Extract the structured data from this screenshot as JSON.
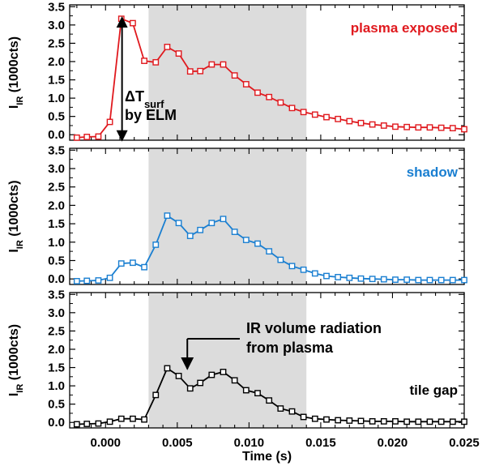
{
  "chart_data": [
    {
      "type": "line",
      "panel": "plasma exposed",
      "label": "plasma exposed",
      "color": "#e0191e",
      "ylabel_main": "I",
      "ylabel_sub": "IR",
      "ylabel_rest": " (1000cts)",
      "xlim": [
        -0.0025,
        0.025
      ],
      "ylim": [
        -0.15,
        3.55
      ],
      "yticks": [
        "0.0",
        "0.5",
        "1.0",
        "1.5",
        "2.0",
        "2.5",
        "3.0",
        "3.5"
      ],
      "shaded_x_range": [
        0.003,
        0.014
      ],
      "x": [
        -0.002,
        -0.0013,
        -0.0005,
        0.0003,
        0.0011,
        0.0019,
        0.0027,
        0.0035,
        0.0043,
        0.0051,
        0.0059,
        0.0066,
        0.0074,
        0.0082,
        0.009,
        0.0098,
        0.0106,
        0.0114,
        0.0122,
        0.013,
        0.0138,
        0.0146,
        0.0154,
        0.0162,
        0.017,
        0.0178,
        0.0186,
        0.0194,
        0.0202,
        0.021,
        0.0218,
        0.0226,
        0.0234,
        0.0242,
        0.025
      ],
      "y": [
        -0.08,
        -0.06,
        -0.05,
        0.35,
        3.17,
        3.05,
        2.02,
        1.98,
        2.4,
        2.22,
        1.73,
        1.74,
        1.92,
        1.92,
        1.62,
        1.38,
        1.15,
        1.03,
        0.88,
        0.73,
        0.62,
        0.55,
        0.48,
        0.43,
        0.37,
        0.32,
        0.28,
        0.25,
        0.22,
        0.21,
        0.2,
        0.2,
        0.19,
        0.18,
        0.15
      ],
      "annotation": {
        "line1": "ΔT",
        "line1_sub": "surf",
        "line2": "by ELM",
        "arrow_x": 0.00115,
        "arrow_y_from": -0.1,
        "arrow_y_to": 3.15
      }
    },
    {
      "type": "line",
      "panel": "shadow",
      "label": "shadow",
      "color": "#1a7fd1",
      "ylabel_main": "I",
      "ylabel_sub": "IR",
      "ylabel_rest": " (1000cts)",
      "xlim": [
        -0.0025,
        0.025
      ],
      "ylim": [
        -0.15,
        3.55
      ],
      "yticks": [
        "0.0",
        "0.5",
        "1.0",
        "1.5",
        "2.0",
        "2.5",
        "3.0",
        "3.5"
      ],
      "shaded_x_range": [
        0.003,
        0.014
      ],
      "x": [
        -0.002,
        -0.0013,
        -0.0005,
        0.0003,
        0.0011,
        0.0019,
        0.0027,
        0.0035,
        0.0043,
        0.0051,
        0.0059,
        0.0066,
        0.0074,
        0.0082,
        0.009,
        0.0098,
        0.0106,
        0.0114,
        0.0122,
        0.013,
        0.0138,
        0.0146,
        0.0154,
        0.0162,
        0.017,
        0.0178,
        0.0186,
        0.0194,
        0.0202,
        0.021,
        0.0218,
        0.0226,
        0.0234,
        0.0242,
        0.025
      ],
      "y": [
        -0.06,
        -0.05,
        -0.04,
        0.03,
        0.42,
        0.44,
        0.32,
        0.93,
        1.72,
        1.52,
        1.17,
        1.33,
        1.52,
        1.63,
        1.28,
        1.06,
        0.96,
        0.75,
        0.52,
        0.35,
        0.25,
        0.15,
        0.08,
        0.05,
        0.03,
        0.01,
        0.0,
        -0.01,
        -0.02,
        -0.02,
        -0.03,
        -0.03,
        -0.03,
        -0.03,
        -0.03
      ]
    },
    {
      "type": "line",
      "panel": "tile gap",
      "label": "tile gap",
      "color": "#000000",
      "ylabel_main": "I",
      "ylabel_sub": "IR",
      "ylabel_rest": " (1000cts)",
      "xlabel": "Time (s)",
      "xlim": [
        -0.0025,
        0.025
      ],
      "ylim": [
        -0.15,
        3.55
      ],
      "yticks": [
        "0.0",
        "0.5",
        "1.0",
        "1.5",
        "2.0",
        "2.5",
        "3.0",
        "3.5"
      ],
      "xticks": [
        "0.000",
        "0.005",
        "0.010",
        "0.015",
        "0.020",
        "0.025"
      ],
      "xtick_values": [
        0.0,
        0.005,
        0.01,
        0.015,
        0.02,
        0.025
      ],
      "shaded_x_range": [
        0.003,
        0.014
      ],
      "x": [
        -0.002,
        -0.0013,
        -0.0005,
        0.0003,
        0.0011,
        0.0019,
        0.0027,
        0.0035,
        0.0043,
        0.0051,
        0.0059,
        0.0066,
        0.0074,
        0.0082,
        0.009,
        0.0098,
        0.0106,
        0.0114,
        0.0122,
        0.013,
        0.0138,
        0.0146,
        0.0154,
        0.0162,
        0.017,
        0.0178,
        0.0186,
        0.0194,
        0.0202,
        0.021,
        0.0218,
        0.0226,
        0.0234,
        0.0242,
        0.025
      ],
      "y": [
        -0.05,
        -0.04,
        -0.03,
        0.02,
        0.1,
        0.1,
        0.08,
        0.75,
        1.48,
        1.27,
        0.93,
        1.08,
        1.3,
        1.38,
        1.15,
        0.88,
        0.8,
        0.6,
        0.38,
        0.3,
        0.15,
        0.1,
        0.08,
        0.06,
        0.05,
        0.04,
        0.03,
        0.03,
        0.03,
        0.02,
        0.02,
        0.02,
        0.02,
        0.02,
        0.02
      ],
      "annotation": {
        "line1": "IR volume radiation",
        "line2": "from plasma",
        "arrow_x": 0.0057,
        "arrow_y_to": 1.33
      }
    }
  ]
}
